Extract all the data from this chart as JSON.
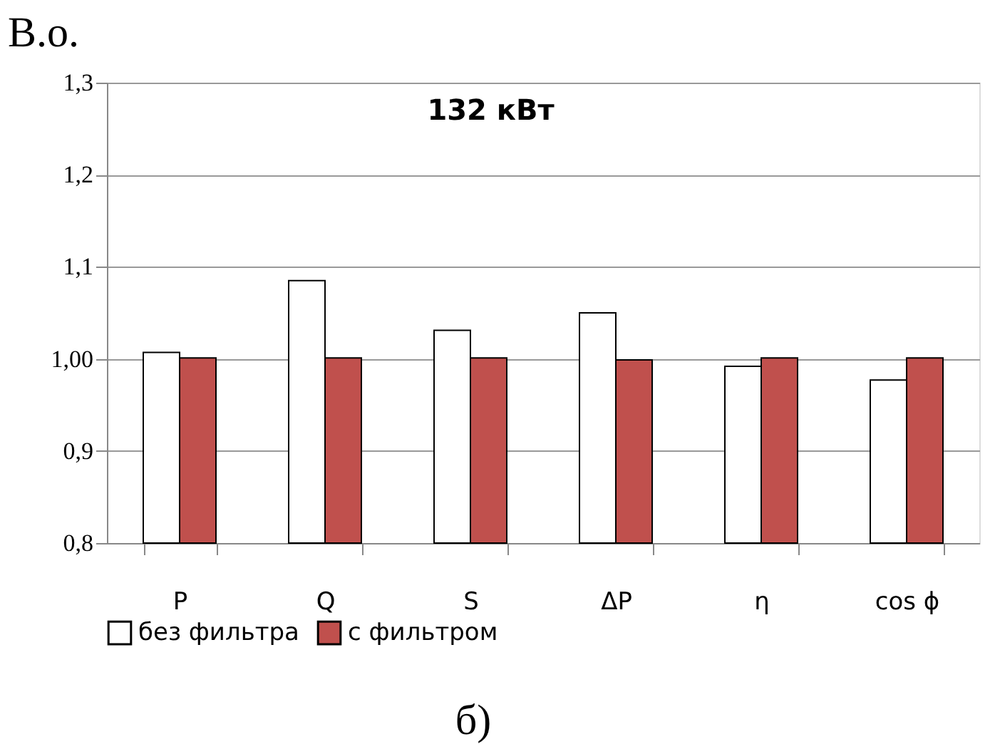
{
  "chart_data": {
    "type": "bar",
    "title": "132 кВт",
    "ylabel": "В.о.",
    "categories": [
      "P",
      "Q",
      "S",
      "ΔP",
      "η",
      "cos ϕ"
    ],
    "series": [
      {
        "name": "без фильтра",
        "color": "#ffffff",
        "values": [
          1.007,
          1.085,
          1.031,
          1.05,
          0.992,
          0.977
        ]
      },
      {
        "name": "с фильтром",
        "color": "#c0504d",
        "values": [
          1.001,
          1.001,
          1.001,
          0.999,
          1.001,
          1.001
        ]
      }
    ],
    "ylim": [
      0.8,
      1.3
    ],
    "yticks": [
      {
        "value": 0.8,
        "label": "0,8"
      },
      {
        "value": 0.9,
        "label": "0,9"
      },
      {
        "value": 1.0,
        "label": "1,00"
      },
      {
        "value": 1.1,
        "label": "1,1"
      },
      {
        "value": 1.2,
        "label": "1,2"
      },
      {
        "value": 1.3,
        "label": "1,3"
      }
    ],
    "grid": "y",
    "legend": "bottom",
    "annotations": [
      "б)"
    ]
  }
}
